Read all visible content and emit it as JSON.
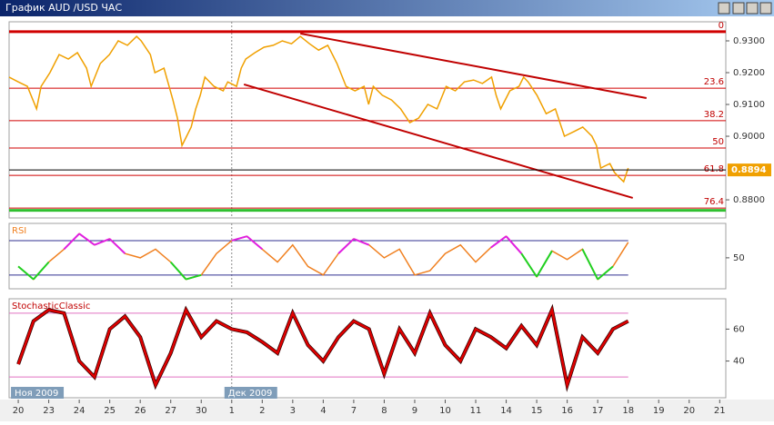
{
  "chart_data": [
    {
      "type": "line",
      "title": "График AUD /USD  ЧАС",
      "xlim": [
        -0.3,
        23.2
      ],
      "ylim": [
        0.8743,
        0.936
      ],
      "yticks": [
        {
          "value": 0.93,
          "label": "0.9300"
        },
        {
          "value": 0.92,
          "label": "0.9200"
        },
        {
          "value": 0.91,
          "label": "0.9100"
        },
        {
          "value": 0.9,
          "label": "0.9000"
        },
        {
          "value": 0.88,
          "label": "0.8800"
        }
      ],
      "series": [
        {
          "color": "#f0a000",
          "x": [
            -0.3,
            0,
            0.3,
            0.6,
            0.75,
            1.04,
            1.34,
            1.64,
            1.94,
            2.24,
            2.39,
            2.69,
            2.99,
            3.28,
            3.58,
            3.88,
            4.03,
            4.33,
            4.48,
            4.78,
            5.07,
            5.22,
            5.37,
            5.52,
            5.67,
            5.82,
            5.97,
            6.12,
            6.42,
            6.72,
            6.87,
            7.16,
            7.31,
            7.46,
            7.76,
            8.06,
            8.36,
            8.66,
            8.96,
            9.25,
            9.55,
            9.85,
            10.15,
            10.45,
            10.75,
            11.04,
            11.34,
            11.49,
            11.64,
            11.94,
            12.24,
            12.54,
            12.84,
            13.13,
            13.43,
            13.73,
            14.03,
            14.33,
            14.63,
            14.93,
            15.22,
            15.52,
            15.67,
            15.82,
            16.12,
            16.42,
            16.57,
            16.72,
            17.01,
            17.31,
            17.61,
            17.76,
            17.91,
            18.21,
            18.51,
            18.81,
            18.96,
            19.1,
            19.4,
            19.55,
            19.7,
            19.85,
            20.0
          ],
          "values": [
            0.9186,
            0.9171,
            0.9157,
            0.9086,
            0.9157,
            0.92,
            0.9257,
            0.9243,
            0.9263,
            0.9214,
            0.9157,
            0.9229,
            0.9257,
            0.93,
            0.9286,
            0.9314,
            0.93,
            0.9257,
            0.92,
            0.9214,
            0.9114,
            0.9057,
            0.8971,
            0.9,
            0.9029,
            0.9086,
            0.9129,
            0.9186,
            0.9157,
            0.9143,
            0.9171,
            0.9157,
            0.9214,
            0.9243,
            0.9263,
            0.928,
            0.9286,
            0.93,
            0.9291,
            0.9314,
            0.9291,
            0.9271,
            0.9286,
            0.9229,
            0.9157,
            0.9143,
            0.9157,
            0.91,
            0.9157,
            0.9129,
            0.9114,
            0.9086,
            0.9043,
            0.9057,
            0.91,
            0.9086,
            0.9157,
            0.9143,
            0.9171,
            0.9177,
            0.9166,
            0.9186,
            0.9129,
            0.9086,
            0.9143,
            0.9157,
            0.9186,
            0.9171,
            0.9129,
            0.9071,
            0.9086,
            0.9043,
            0.9,
            0.9014,
            0.9029,
            0.9,
            0.8971,
            0.89,
            0.8914,
            0.8886,
            0.8871,
            0.8857,
            0.89
          ]
        }
      ],
      "fib_levels": [
        {
          "label": "0",
          "value": 0.9329
        },
        {
          "label": "23.6",
          "value": 0.9151
        },
        {
          "label": "38.2",
          "value": 0.9049
        },
        {
          "label": "50",
          "value": 0.8963
        },
        {
          "label": "61.8",
          "value": 0.8877
        },
        {
          "label": "76.4",
          "value": 0.8774
        }
      ],
      "trend_lines": [
        {
          "x": [
            9.25,
            20.6
          ],
          "y": [
            0.9323,
            0.912
          ]
        },
        {
          "x": [
            7.4,
            20.15
          ],
          "y": [
            0.9163,
            0.8806
          ]
        }
      ],
      "last_price": 0.8894
    },
    {
      "type": "line",
      "title": "RSI",
      "xlim": [
        -0.3,
        23.2
      ],
      "ylim": [
        14,
        90
      ],
      "yticks": [
        50
      ],
      "levels": [
        30,
        70
      ],
      "series": [
        {
          "color": "#f08020",
          "x": [
            0,
            0.5,
            1,
            1.5,
            2,
            2.5,
            3,
            3.5,
            4,
            4.5,
            5,
            5.5,
            6,
            6.5,
            7,
            7.5,
            8,
            8.5,
            9,
            9.5,
            10,
            10.5,
            11,
            11.5,
            12,
            12.5,
            13,
            13.5,
            14,
            14.5,
            15,
            15.5,
            16,
            16.5,
            17,
            17.5,
            18,
            18.5,
            19,
            19.5,
            20
          ],
          "values": [
            40,
            25,
            45,
            60,
            78,
            65,
            72,
            55,
            50,
            60,
            45,
            25,
            30,
            55,
            70,
            75,
            60,
            45,
            65,
            40,
            30,
            55,
            72,
            65,
            50,
            60,
            30,
            35,
            55,
            65,
            45,
            62,
            75,
            55,
            28,
            58,
            48,
            60,
            25,
            40,
            68
          ]
        }
      ]
    },
    {
      "type": "line",
      "title": "StochasticClassic",
      "xlim": [
        -0.3,
        23.2
      ],
      "ylim": [
        17,
        79
      ],
      "yticks": [
        60,
        40
      ],
      "levels": [
        30,
        70
      ],
      "series": [
        {
          "color": "#e00000",
          "x": [
            0,
            0.5,
            1,
            1.5,
            2,
            2.5,
            3,
            3.5,
            4,
            4.5,
            5,
            5.5,
            6,
            6.5,
            7,
            7.5,
            8,
            8.5,
            9,
            9.5,
            10,
            10.5,
            11,
            11.5,
            12,
            12.5,
            13,
            13.5,
            14,
            14.5,
            15,
            15.5,
            16,
            16.5,
            17,
            17.5,
            18,
            18.5,
            19,
            19.5,
            20
          ],
          "values": [
            38,
            65,
            72,
            70,
            40,
            30,
            60,
            68,
            55,
            25,
            45,
            72,
            55,
            65,
            60,
            58,
            52,
            45,
            70,
            50,
            40,
            55,
            65,
            60,
            32,
            60,
            45,
            70,
            50,
            40,
            60,
            55,
            48,
            62,
            50,
            72,
            25,
            55,
            45,
            60,
            65
          ]
        }
      ],
      "xticks": [
        {
          "value": 0,
          "label": "20"
        },
        {
          "value": 1,
          "label": "23"
        },
        {
          "value": 2,
          "label": "24"
        },
        {
          "value": 3,
          "label": "25"
        },
        {
          "value": 4,
          "label": "26"
        },
        {
          "value": 5,
          "label": "27"
        },
        {
          "value": 6,
          "label": "30"
        },
        {
          "value": 7,
          "label": "1"
        },
        {
          "value": 8,
          "label": "2"
        },
        {
          "value": 9,
          "label": "3"
        },
        {
          "value": 10,
          "label": "4"
        },
        {
          "value": 11,
          "label": "7"
        },
        {
          "value": 12,
          "label": "8"
        },
        {
          "value": 13,
          "label": "9"
        },
        {
          "value": 14,
          "label": "10"
        },
        {
          "value": 15,
          "label": "11"
        },
        {
          "value": 16,
          "label": "14"
        },
        {
          "value": 17,
          "label": "15"
        },
        {
          "value": 18,
          "label": "16"
        },
        {
          "value": 19,
          "label": "17"
        },
        {
          "value": 20,
          "label": "18"
        },
        {
          "value": 21,
          "label": "19"
        },
        {
          "value": 22,
          "label": "20"
        },
        {
          "value": 23,
          "label": "21"
        }
      ],
      "period_labels": [
        {
          "value": 0,
          "label": "Ноя 2009"
        },
        {
          "value": 7,
          "label": "Дек 2009"
        }
      ]
    }
  ]
}
